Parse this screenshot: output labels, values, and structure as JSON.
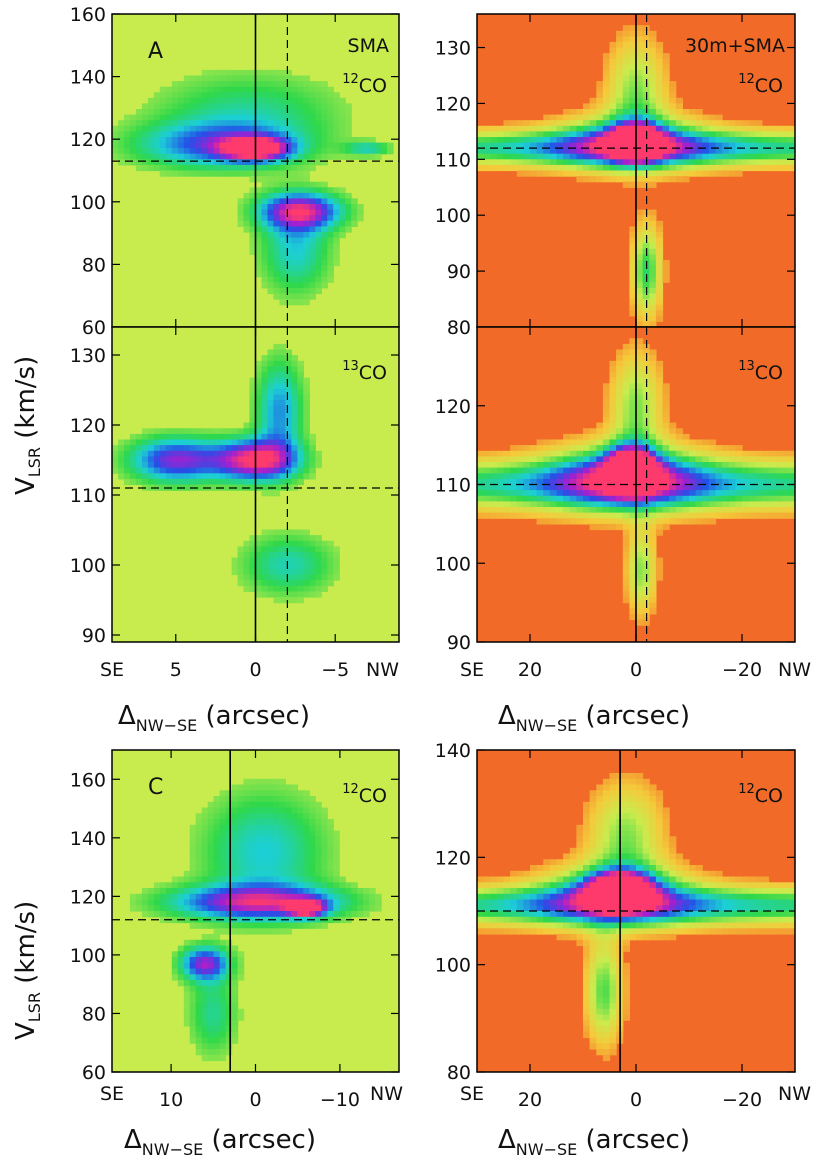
{
  "figure": {
    "ylabel_main": "V",
    "ylabel_sub": "LSR",
    "ylabel_unit": " (km/s)",
    "xlabel_main": "Δ",
    "xlabel_sub": "NW−SE",
    "xlabel_unit": " (arcsec)",
    "dir_left": "SE",
    "dir_right": "NW"
  },
  "colors": {
    "low": "#f26a28",
    "mid_low": "#f5c93a",
    "mid": "#c8ec4e",
    "green": "#2fd84a",
    "cyan": "#1ccfd6",
    "blue": "#2350e8",
    "magenta": "#a51fd0",
    "peak": "#ff3a6b"
  },
  "chart_data": [
    {
      "id": "A-12CO-SMA",
      "type": "heatmap",
      "panel_letter": "A",
      "instrument": "SMA",
      "line_sup": "12",
      "line_base": "CO",
      "background": "yellowgreen",
      "xlim": [
        9,
        -9
      ],
      "ylim": [
        60,
        160
      ],
      "xticks": [
        5,
        0,
        -5
      ],
      "xtick_labels": [
        "5",
        "0",
        "−5"
      ],
      "yticks": [
        60,
        80,
        100,
        120,
        140,
        160
      ],
      "solid_vline_x": 0,
      "dashed_vline_x": -2,
      "dashed_hline_y": 113,
      "blobs": [
        {
          "cx": 2.5,
          "cy": 118,
          "sx": 3.5,
          "sy": 5,
          "amp": 0.55
        },
        {
          "cx": 0,
          "cy": 117,
          "sx": 1.4,
          "sy": 2.5,
          "amp": 1.0
        },
        {
          "cx": 0.5,
          "cy": 128,
          "sx": 4,
          "sy": 9,
          "amp": 0.3
        },
        {
          "cx": -2.8,
          "cy": 97,
          "sx": 1.8,
          "sy": 4,
          "amp": 0.85
        },
        {
          "cx": -2.5,
          "cy": 85,
          "sx": 1.5,
          "sy": 10,
          "amp": 0.4
        },
        {
          "cx": -7,
          "cy": 117,
          "sx": 1,
          "sy": 1.5,
          "amp": 0.35
        }
      ]
    },
    {
      "id": "A-12CO-30m+SMA",
      "type": "heatmap",
      "instrument": "30m+SMA",
      "line_sup": "12",
      "line_base": "CO",
      "background": "red",
      "xlim": [
        30,
        -30
      ],
      "ylim": [
        80,
        136
      ],
      "xticks": [
        20,
        0,
        -20
      ],
      "xtick_labels": [
        "20",
        "0",
        "−20"
      ],
      "yticks": [
        80,
        90,
        100,
        110,
        120,
        130
      ],
      "solid_vline_x": 0,
      "dashed_vline_x": -2,
      "dashed_hline_y": 112,
      "blobs": [
        {
          "cx": 0,
          "cy": 112,
          "sx": 60,
          "sy": 2.2,
          "amp": 0.55
        },
        {
          "cx": 1,
          "cy": 113,
          "sx": 10,
          "sy": 3.5,
          "amp": 0.55
        },
        {
          "cx": 0,
          "cy": 113,
          "sx": 3,
          "sy": 2,
          "amp": 1.0
        },
        {
          "cx": 0,
          "cy": 122,
          "sx": 4,
          "sy": 7,
          "amp": 0.35
        },
        {
          "cx": -2,
          "cy": 90,
          "sx": 2,
          "sy": 6,
          "amp": 0.45
        }
      ]
    },
    {
      "id": "A-13CO-SMA",
      "type": "heatmap",
      "line_sup": "13",
      "line_base": "CO",
      "background": "yellowgreen",
      "xlim": [
        9,
        -9
      ],
      "ylim": [
        89,
        134
      ],
      "xticks": [
        5,
        0,
        -5
      ],
      "xtick_labels": [
        "5",
        "0",
        "−5"
      ],
      "yticks": [
        90,
        100,
        110,
        120,
        130
      ],
      "solid_vline_x": 0,
      "dashed_vline_x": -2,
      "dashed_hline_y": 111,
      "blobs": [
        {
          "cx": 5,
          "cy": 115,
          "sx": 2,
          "sy": 2.2,
          "amp": 0.75
        },
        {
          "cx": 0,
          "cy": 115,
          "sx": 1.8,
          "sy": 2,
          "amp": 1.0
        },
        {
          "cx": -1.5,
          "cy": 122,
          "sx": 1,
          "sy": 5,
          "amp": 0.5
        },
        {
          "cx": -2,
          "cy": 100,
          "sx": 2,
          "sy": 3,
          "amp": 0.35
        }
      ]
    },
    {
      "id": "A-13CO-30m+SMA",
      "type": "heatmap",
      "line_sup": "13",
      "line_base": "CO",
      "background": "red",
      "xlim": [
        30,
        -30
      ],
      "ylim": [
        90,
        130
      ],
      "xticks": [
        20,
        0,
        -20
      ],
      "xtick_labels": [
        "20",
        "0",
        "−20"
      ],
      "yticks": [
        90,
        100,
        110,
        120
      ],
      "solid_vline_x": 0,
      "dashed_vline_x": -2,
      "dashed_hline_y": 110,
      "blobs": [
        {
          "cx": 0,
          "cy": 110,
          "sx": 60,
          "sy": 2.2,
          "amp": 0.55
        },
        {
          "cx": 2,
          "cy": 111,
          "sx": 10,
          "sy": 3,
          "amp": 0.6
        },
        {
          "cx": 1,
          "cy": 112,
          "sx": 3,
          "sy": 1.8,
          "amp": 1.0
        },
        {
          "cx": 0,
          "cy": 120,
          "sx": 3.5,
          "sy": 5,
          "amp": 0.35
        },
        {
          "cx": -1,
          "cy": 99,
          "sx": 2,
          "sy": 4,
          "amp": 0.35
        }
      ]
    },
    {
      "id": "C-12CO-SMA",
      "type": "heatmap",
      "panel_letter": "C",
      "line_sup": "12",
      "line_base": "CO",
      "background": "yellowgreen",
      "xlim": [
        17,
        -17
      ],
      "ylim": [
        60,
        170
      ],
      "xticks": [
        10,
        0,
        -10
      ],
      "xtick_labels": [
        "10",
        "0",
        "−10"
      ],
      "yticks": [
        60,
        80,
        100,
        120,
        140,
        160
      ],
      "solid_vline_x": 3,
      "dashed_vline_x": -100,
      "dashed_hline_y": 112,
      "blobs": [
        {
          "cx": 0,
          "cy": 118,
          "sx": 7,
          "sy": 4,
          "amp": 0.8
        },
        {
          "cx": -6,
          "cy": 116,
          "sx": 1.5,
          "sy": 2,
          "amp": 0.95
        },
        {
          "cx": -1,
          "cy": 135,
          "sx": 5,
          "sy": 14,
          "amp": 0.4
        },
        {
          "cx": 6,
          "cy": 97,
          "sx": 2,
          "sy": 4,
          "amp": 0.75
        },
        {
          "cx": 5,
          "cy": 80,
          "sx": 2,
          "sy": 10,
          "amp": 0.3
        }
      ]
    },
    {
      "id": "C-12CO-30m+SMA",
      "type": "heatmap",
      "line_sup": "12",
      "line_base": "CO",
      "background": "red",
      "xlim": [
        30,
        -30
      ],
      "ylim": [
        80,
        140
      ],
      "xticks": [
        20,
        0,
        -20
      ],
      "xtick_labels": [
        "20",
        "0",
        "−20"
      ],
      "yticks": [
        80,
        100,
        120,
        140
      ],
      "solid_vline_x": 3,
      "dashed_vline_x": -100,
      "dashed_hline_y": 110,
      "blobs": [
        {
          "cx": 0,
          "cy": 111,
          "sx": 60,
          "sy": 2.5,
          "amp": 0.55
        },
        {
          "cx": 4,
          "cy": 113,
          "sx": 10,
          "sy": 4,
          "amp": 0.55
        },
        {
          "cx": 3,
          "cy": 114,
          "sx": 4,
          "sy": 2.2,
          "amp": 1.0
        },
        {
          "cx": 2,
          "cy": 124,
          "sx": 5,
          "sy": 7,
          "amp": 0.35
        },
        {
          "cx": 6,
          "cy": 95,
          "sx": 2.5,
          "sy": 7,
          "amp": 0.4
        }
      ]
    }
  ]
}
